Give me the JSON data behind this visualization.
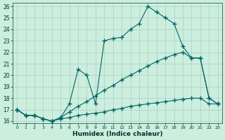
{
  "xlabel": "Humidex (Indice chaleur)",
  "bg_color": "#cceedd",
  "grid_color": "#aacccc",
  "line_color": "#006666",
  "xlim": [
    -0.5,
    23.5
  ],
  "ylim": [
    15.8,
    26.3
  ],
  "xticks": [
    0,
    1,
    2,
    3,
    4,
    5,
    6,
    7,
    8,
    9,
    10,
    11,
    12,
    13,
    14,
    15,
    16,
    17,
    18,
    19,
    20,
    21,
    22,
    23
  ],
  "yticks": [
    16,
    17,
    18,
    19,
    20,
    21,
    22,
    23,
    24,
    25,
    26
  ],
  "series_min_x": [
    0,
    1,
    2,
    3,
    4,
    5,
    6,
    7,
    8,
    9,
    10,
    11,
    12,
    13,
    14,
    15,
    16,
    17,
    18,
    19,
    20,
    21,
    22,
    23
  ],
  "series_min_y": [
    17.0,
    16.5,
    16.5,
    16.2,
    16.0,
    16.2,
    16.3,
    16.5,
    16.6,
    16.7,
    16.8,
    17.0,
    17.1,
    17.3,
    17.4,
    17.5,
    17.6,
    17.7,
    17.8,
    17.9,
    18.0,
    18.0,
    17.5,
    17.5
  ],
  "series_mid_x": [
    0,
    1,
    2,
    3,
    4,
    5,
    6,
    7,
    8,
    9,
    10,
    11,
    12,
    13,
    14,
    15,
    16,
    17,
    18,
    19,
    20,
    21,
    22,
    23
  ],
  "series_mid_y": [
    17.0,
    16.5,
    16.5,
    16.2,
    16.0,
    16.3,
    16.8,
    17.3,
    17.7,
    18.2,
    18.7,
    19.1,
    19.6,
    20.0,
    20.4,
    20.8,
    21.2,
    21.5,
    21.8,
    22.0,
    21.5,
    21.5,
    18.0,
    17.5
  ],
  "series_top_x": [
    0,
    1,
    2,
    3,
    4,
    5,
    6,
    7,
    8,
    9,
    10,
    11,
    12,
    13,
    14,
    15,
    16,
    17,
    18,
    19,
    20,
    21,
    22,
    23
  ],
  "series_top_y": [
    17.0,
    16.5,
    16.5,
    16.2,
    16.0,
    16.3,
    17.5,
    20.5,
    20.0,
    17.5,
    23.0,
    23.2,
    23.3,
    24.0,
    24.5,
    26.0,
    25.5,
    25.0,
    24.5,
    22.5,
    21.5,
    21.5,
    18.0,
    17.5
  ]
}
